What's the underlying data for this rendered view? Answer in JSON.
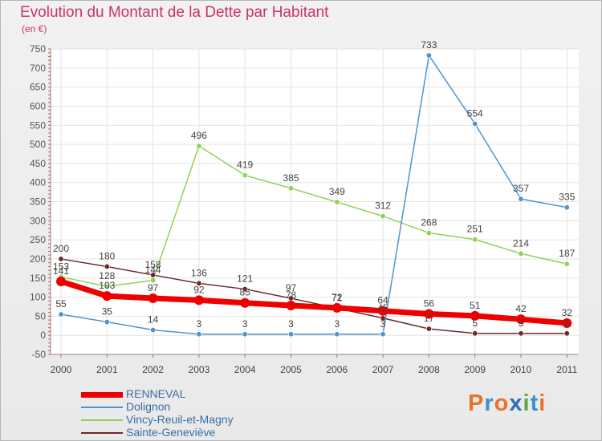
{
  "title": "Evolution du Montant de la Dette par Habitant",
  "subtitle": "(en €)",
  "logo": {
    "text": "Proxiti",
    "colors": [
      "#e8732a",
      "#3c8fd6",
      "#e8732a",
      "#2f6db5",
      "#5aa84a",
      "#3c8fd6",
      "#e8732a"
    ]
  },
  "chart_data": {
    "type": "line",
    "categories": [
      "2000",
      "2001",
      "2002",
      "2003",
      "2004",
      "2005",
      "2006",
      "2007",
      "2008",
      "2009",
      "2010",
      "2011"
    ],
    "ylim": [
      -50,
      750
    ],
    "yticks": [
      -50,
      0,
      50,
      100,
      150,
      200,
      250,
      300,
      350,
      400,
      450,
      500,
      550,
      600,
      650,
      700,
      750
    ],
    "grid": true,
    "legend_position": "bottom-left",
    "series": [
      {
        "name": "RENNEVAL",
        "color": "#ee0000",
        "values": [
          141,
          103,
          97,
          92,
          85,
          78,
          72,
          64,
          56,
          51,
          42,
          32
        ]
      },
      {
        "name": "Dolignon",
        "color": "#4f95cd",
        "values": [
          55,
          35,
          14,
          3,
          3,
          3,
          3,
          3,
          733,
          554,
          357,
          335
        ]
      },
      {
        "name": "Vincy-Reuil-et-Magny",
        "color": "#8ed25a",
        "values": [
          153,
          128,
          144,
          496,
          419,
          385,
          349,
          312,
          268,
          251,
          214,
          187
        ]
      },
      {
        "name": "Sainte-Geneviève",
        "color": "#6e2a2a",
        "values": [
          200,
          180,
          158,
          136,
          121,
          97,
          71,
          45,
          17,
          5,
          5,
          5
        ]
      }
    ]
  }
}
